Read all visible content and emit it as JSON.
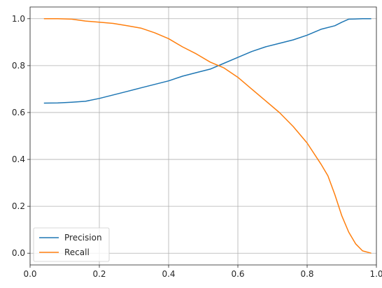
{
  "chart_data": {
    "type": "line",
    "title": "",
    "xlabel": "",
    "ylabel": "",
    "xlim": [
      0.0,
      1.0
    ],
    "ylim": [
      -0.05,
      1.05
    ],
    "xticks": [
      "0.0",
      "0.2",
      "0.4",
      "0.6",
      "0.8",
      "1.0"
    ],
    "yticks": [
      "0.0",
      "0.2",
      "0.4",
      "0.6",
      "0.8",
      "1.0"
    ],
    "grid": true,
    "legend_position": "lower-left",
    "series": [
      {
        "name": "Precision",
        "color": "#1f77b4",
        "x": [
          0.04,
          0.08,
          0.12,
          0.16,
          0.2,
          0.24,
          0.28,
          0.32,
          0.36,
          0.4,
          0.44,
          0.48,
          0.52,
          0.56,
          0.6,
          0.64,
          0.68,
          0.72,
          0.76,
          0.8,
          0.84,
          0.88,
          0.9,
          0.92,
          0.96,
          0.985
        ],
        "y": [
          0.64,
          0.641,
          0.644,
          0.648,
          0.66,
          0.675,
          0.69,
          0.705,
          0.72,
          0.735,
          0.755,
          0.77,
          0.785,
          0.81,
          0.835,
          0.86,
          0.88,
          0.895,
          0.91,
          0.93,
          0.955,
          0.97,
          0.985,
          0.998,
          1.0,
          1.0
        ]
      },
      {
        "name": "Recall",
        "color": "#ff7f0e",
        "x": [
          0.04,
          0.08,
          0.12,
          0.16,
          0.2,
          0.24,
          0.28,
          0.32,
          0.36,
          0.4,
          0.44,
          0.48,
          0.52,
          0.56,
          0.6,
          0.64,
          0.68,
          0.72,
          0.76,
          0.8,
          0.84,
          0.86,
          0.88,
          0.9,
          0.92,
          0.94,
          0.96,
          0.985
        ],
        "y": [
          1.0,
          1.0,
          0.998,
          0.99,
          0.985,
          0.98,
          0.97,
          0.96,
          0.94,
          0.915,
          0.88,
          0.85,
          0.815,
          0.79,
          0.75,
          0.7,
          0.65,
          0.6,
          0.54,
          0.47,
          0.38,
          0.33,
          0.25,
          0.16,
          0.09,
          0.04,
          0.01,
          0.0
        ]
      }
    ]
  }
}
